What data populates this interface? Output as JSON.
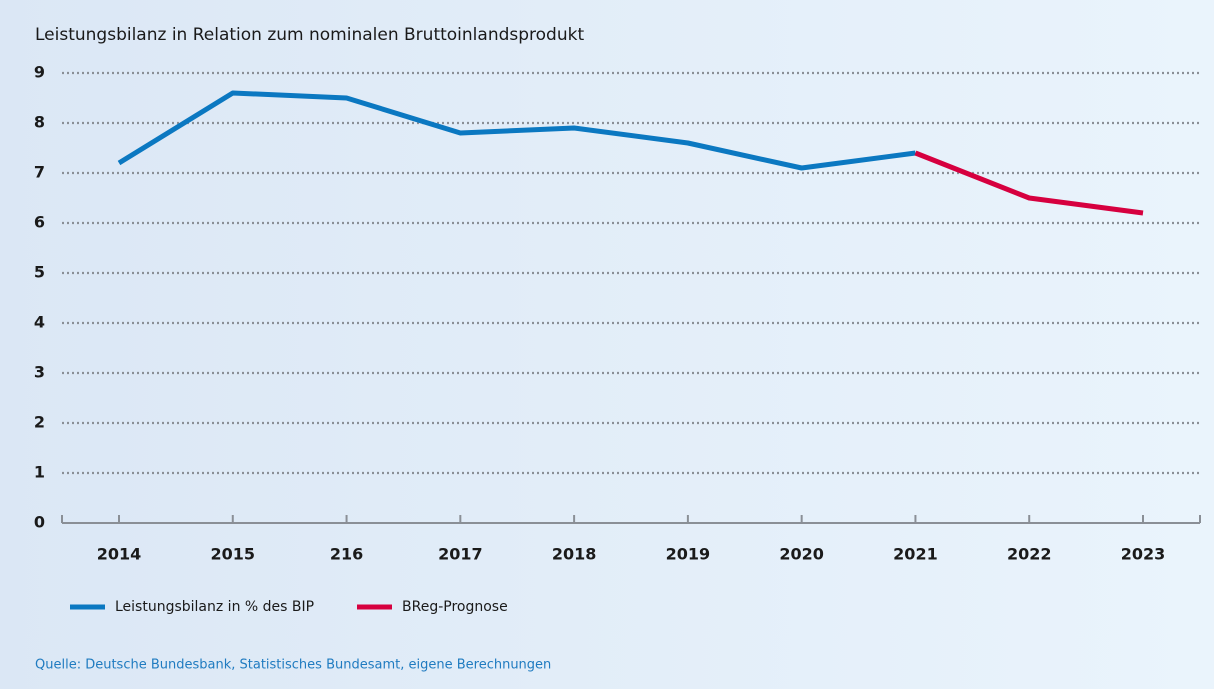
{
  "chart_data": {
    "type": "line",
    "title": "Leistungsbilanz in Relation zum nominalen Bruttoinlandsprodukt",
    "categories": [
      "2014",
      "2015",
      "216",
      "2017",
      "2018",
      "2019",
      "2020",
      "2021",
      "2022",
      "2023"
    ],
    "series": [
      {
        "name": "Leistungsbilanz in % des BIP",
        "color": "#0b78c1",
        "values": [
          7.2,
          8.6,
          8.5,
          7.8,
          7.9,
          7.6,
          7.1,
          7.4,
          null,
          null
        ]
      },
      {
        "name": "BReg-Prognose",
        "color": "#d6003f",
        "values": [
          null,
          null,
          null,
          null,
          null,
          null,
          null,
          7.4,
          6.5,
          6.2
        ]
      }
    ],
    "ylim": [
      0,
      9
    ],
    "yticks": [
      0,
      1,
      2,
      3,
      4,
      5,
      6,
      7,
      8,
      9
    ],
    "grid": true,
    "source": "Quelle: Deutsche Bundesbank, Statistisches Bundesamt, eigene Berechnungen"
  }
}
